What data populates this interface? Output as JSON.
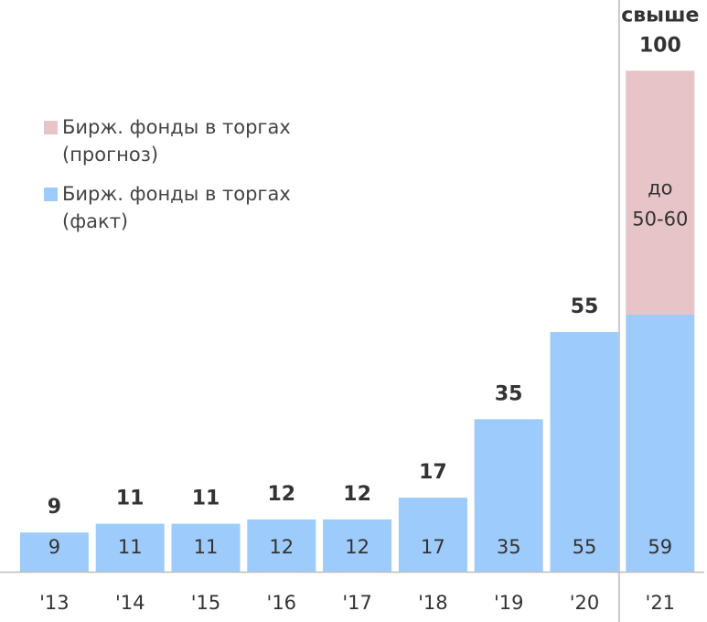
{
  "chart_data": {
    "type": "stacked_bar",
    "categories": [
      "'13",
      "'14",
      "'15",
      "'16",
      "'17",
      "'18",
      "'19",
      "'20",
      "'21"
    ],
    "series": [
      {
        "name": "Бирж. фонды в торгах (факт)",
        "color": "#9dcbfb",
        "values": [
          9,
          11,
          11,
          12,
          12,
          17,
          35,
          55,
          59
        ]
      },
      {
        "name": "Бирж. фонды в торгах (прогноз)",
        "color": "#e6c4c7",
        "values": [
          null,
          null,
          null,
          null,
          null,
          null,
          null,
          null,
          56
        ],
        "value_labels": [
          null,
          null,
          null,
          null,
          null,
          null,
          null,
          null,
          "до 50-60"
        ]
      }
    ],
    "total_labels": [
      "9",
      "11",
      "11",
      "12",
      "12",
      "17",
      "35",
      "55",
      "свыше 100"
    ],
    "ylim": [
      0,
      118
    ],
    "legend": "upper left",
    "highlight_category": 8
  }
}
